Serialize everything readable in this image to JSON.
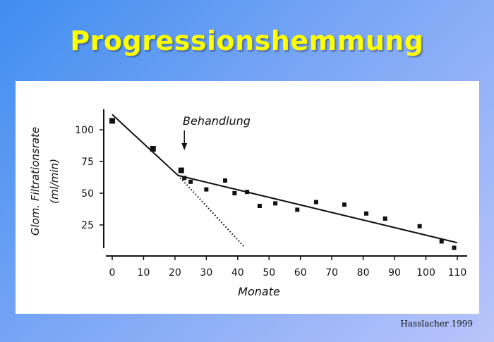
{
  "slide": {
    "title": "Progressionshemmung",
    "credit": "Hasslacher 1999"
  },
  "chart_data": {
    "type": "scatter",
    "title": "",
    "xlabel": "Monate",
    "ylabel_line1": "Glom. Filtrationsrate",
    "ylabel_line2": "(ml/min)",
    "xlim": [
      0,
      110
    ],
    "ylim": [
      0,
      115
    ],
    "x_ticks": [
      0,
      10,
      20,
      30,
      40,
      50,
      60,
      70,
      80,
      90,
      100,
      110
    ],
    "y_ticks": [
      25,
      50,
      75,
      100
    ],
    "grid": false,
    "annotation": {
      "text": "Behandlung",
      "x": 23
    },
    "points": [
      {
        "x": 0,
        "y": 107
      },
      {
        "x": 13,
        "y": 85
      },
      {
        "x": 22,
        "y": 68
      },
      {
        "x": 23,
        "y": 62
      },
      {
        "x": 25,
        "y": 59
      },
      {
        "x": 30,
        "y": 53
      },
      {
        "x": 36,
        "y": 60
      },
      {
        "x": 39,
        "y": 50
      },
      {
        "x": 43,
        "y": 51
      },
      {
        "x": 47,
        "y": 40
      },
      {
        "x": 52,
        "y": 42
      },
      {
        "x": 59,
        "y": 37
      },
      {
        "x": 65,
        "y": 43
      },
      {
        "x": 74,
        "y": 41
      },
      {
        "x": 81,
        "y": 34
      },
      {
        "x": 87,
        "y": 30
      },
      {
        "x": 98,
        "y": 24
      },
      {
        "x": 105,
        "y": 12
      },
      {
        "x": 109,
        "y": 7
      }
    ],
    "lines": [
      {
        "style": "solid",
        "points": [
          [
            0,
            112
          ],
          [
            21,
            64
          ]
        ]
      },
      {
        "style": "solid",
        "points": [
          [
            21,
            64
          ],
          [
            110,
            11
          ]
        ]
      },
      {
        "style": "dotted",
        "points": [
          [
            21,
            64
          ],
          [
            42,
            8
          ]
        ]
      }
    ]
  }
}
